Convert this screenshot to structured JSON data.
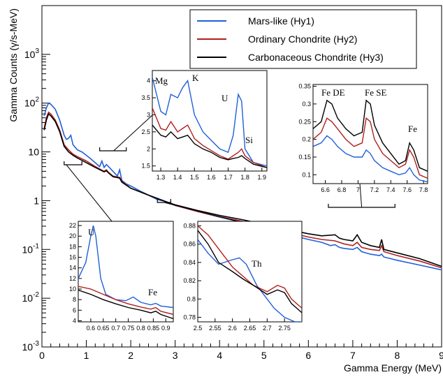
{
  "chart_data": [
    {
      "id": "main",
      "type": "line",
      "xlabel": "Gamma Energy (MeV)",
      "ylabel": "Gamma Counts (γ/s-MeV)",
      "xlim": [
        0,
        9
      ],
      "ylim": [
        0.001,
        10000
      ],
      "yscale": "log",
      "xticks": [
        "0",
        "1",
        "2",
        "3",
        "4",
        "5",
        "6",
        "7",
        "8",
        "9"
      ],
      "yticks": [
        {
          "base": "10",
          "exp": "-3"
        },
        {
          "base": "10",
          "exp": "-2"
        },
        {
          "base": "10",
          "exp": "-1"
        },
        {
          "base": "1",
          "exp": ""
        },
        {
          "base": "10",
          "exp": ""
        },
        {
          "base": "10",
          "exp": "2"
        },
        {
          "base": "10",
          "exp": "3"
        }
      ],
      "legend_position": "top-right",
      "series": [
        {
          "name": "Mars-like (Hy1)",
          "color": "#2060d8",
          "x": [
            0.05,
            0.1,
            0.15,
            0.2,
            0.3,
            0.4,
            0.5,
            0.55,
            0.6,
            0.65,
            0.7,
            0.8,
            0.9,
            1.0,
            1.1,
            1.2,
            1.3,
            1.35,
            1.4,
            1.45,
            1.5,
            1.6,
            1.7,
            1.75,
            1.8,
            1.9,
            2.0,
            2.2,
            2.4,
            2.6,
            2.8,
            3.0,
            3.5,
            4.0,
            4.5,
            5.0,
            5.5,
            6.0,
            6.3,
            6.5,
            6.6,
            6.7,
            6.8,
            7.0,
            7.1,
            7.2,
            7.4,
            7.6,
            7.65,
            7.7,
            8.0,
            8.5,
            9.0
          ],
          "y": [
            55,
            80,
            100,
            95,
            75,
            45,
            22,
            18,
            19,
            22,
            14,
            11,
            10,
            8.5,
            7.2,
            6,
            5,
            6.5,
            4.8,
            5.5,
            5,
            4,
            3.2,
            4.3,
            2.6,
            2.2,
            2,
            1.6,
            1.3,
            1.05,
            0.95,
            0.8,
            0.6,
            0.46,
            0.36,
            0.28,
            0.21,
            0.16,
            0.14,
            0.12,
            0.125,
            0.11,
            0.105,
            0.1,
            0.11,
            0.09,
            0.08,
            0.075,
            0.08,
            0.07,
            0.06,
            0.048,
            0.038
          ]
        },
        {
          "name": "Ordinary Chondrite (Hy2)",
          "color": "#b02020",
          "x": [
            0.05,
            0.1,
            0.15,
            0.2,
            0.3,
            0.4,
            0.5,
            0.6,
            0.7,
            0.8,
            1.0,
            1.2,
            1.4,
            1.45,
            1.5,
            1.6,
            1.75,
            1.8,
            2.0,
            2.4,
            2.8,
            3.0,
            3.5,
            4.0,
            4.5,
            5.0,
            5.5,
            6.0,
            6.3,
            6.6,
            6.7,
            6.8,
            7.0,
            7.1,
            7.2,
            7.4,
            7.6,
            7.65,
            7.7,
            8.0,
            8.5,
            9.0
          ],
          "y": [
            30,
            50,
            65,
            60,
            45,
            28,
            14,
            11,
            9,
            8,
            6.5,
            5,
            4,
            4.3,
            3.8,
            3.2,
            3,
            2.5,
            1.8,
            1.3,
            0.95,
            0.8,
            0.6,
            0.47,
            0.38,
            0.3,
            0.23,
            0.18,
            0.16,
            0.15,
            0.14,
            0.13,
            0.12,
            0.14,
            0.11,
            0.1,
            0.095,
            0.12,
            0.09,
            0.075,
            0.058,
            0.042
          ]
        },
        {
          "name": "Carbonaceous Chondrite (Hy3)",
          "color": "#000000",
          "x": [
            0.05,
            0.1,
            0.15,
            0.2,
            0.3,
            0.4,
            0.5,
            0.6,
            0.7,
            0.8,
            1.0,
            1.2,
            1.4,
            1.45,
            1.5,
            1.6,
            1.75,
            1.8,
            2.0,
            2.4,
            2.8,
            3.0,
            3.5,
            4.0,
            4.5,
            5.0,
            5.5,
            6.0,
            6.3,
            6.6,
            6.7,
            6.8,
            7.0,
            7.1,
            7.2,
            7.4,
            7.6,
            7.65,
            7.7,
            8.0,
            8.5,
            9.0
          ],
          "y": [
            28,
            45,
            60,
            55,
            42,
            26,
            13,
            10,
            8.5,
            7.5,
            6,
            4.8,
            3.9,
            4.1,
            3.7,
            3.1,
            2.9,
            2.4,
            1.8,
            1.3,
            0.95,
            0.82,
            0.63,
            0.5,
            0.41,
            0.33,
            0.26,
            0.21,
            0.19,
            0.2,
            0.17,
            0.16,
            0.15,
            0.2,
            0.14,
            0.12,
            0.11,
            0.16,
            0.1,
            0.085,
            0.065,
            0.045
          ]
        }
      ]
    },
    {
      "id": "inset-mg-k",
      "type": "line",
      "xlim": [
        1.25,
        1.93
      ],
      "ylim": [
        1.35,
        4.3
      ],
      "xticks": [
        "1.3",
        "1.4",
        "1.5",
        "1.6",
        "1.7",
        "1.8",
        "1.9"
      ],
      "yticks": [
        "1.5",
        "2",
        "2.5",
        "3",
        "3.5",
        "4"
      ],
      "annotations": [
        "Mg",
        "K",
        "U",
        "Si"
      ],
      "series": [
        {
          "color": "#2060d8",
          "x": [
            1.25,
            1.3,
            1.33,
            1.36,
            1.4,
            1.43,
            1.46,
            1.5,
            1.55,
            1.6,
            1.65,
            1.7,
            1.73,
            1.76,
            1.78,
            1.8,
            1.85,
            1.93
          ],
          "y": [
            4.1,
            3.1,
            3.0,
            3.6,
            3.5,
            3.8,
            4.0,
            3.0,
            2.5,
            2.25,
            2.0,
            1.9,
            2.4,
            3.6,
            3.4,
            2.0,
            1.6,
            1.5
          ]
        },
        {
          "color": "#b02020",
          "x": [
            1.25,
            1.3,
            1.33,
            1.36,
            1.4,
            1.43,
            1.46,
            1.5,
            1.55,
            1.6,
            1.65,
            1.7,
            1.73,
            1.76,
            1.78,
            1.8,
            1.85,
            1.93
          ],
          "y": [
            3.2,
            2.6,
            2.55,
            2.8,
            2.5,
            2.6,
            2.7,
            2.3,
            2.1,
            1.95,
            1.8,
            1.7,
            1.8,
            1.9,
            2.0,
            1.8,
            1.6,
            1.45
          ]
        },
        {
          "color": "#000000",
          "x": [
            1.25,
            1.3,
            1.33,
            1.36,
            1.4,
            1.43,
            1.46,
            1.5,
            1.55,
            1.6,
            1.65,
            1.7,
            1.73,
            1.76,
            1.78,
            1.8,
            1.85,
            1.93
          ],
          "y": [
            2.7,
            2.4,
            2.35,
            2.5,
            2.3,
            2.35,
            2.4,
            2.15,
            2.0,
            1.9,
            1.75,
            1.68,
            1.72,
            1.75,
            1.8,
            1.72,
            1.55,
            1.45
          ]
        }
      ]
    },
    {
      "id": "inset-fe",
      "type": "line",
      "xlim": [
        6.45,
        7.85
      ],
      "ylim": [
        0.075,
        0.355
      ],
      "xticks": [
        "6.6",
        "6.8",
        "7",
        "7.2",
        "7.4",
        "7.6",
        "7.8"
      ],
      "yticks": [
        "0.1",
        "0.15",
        "0.2",
        "0.25",
        "0.3",
        "0.35"
      ],
      "annotations": [
        "Fe DE",
        "Fe SE",
        "Fe"
      ],
      "series": [
        {
          "color": "#000000",
          "x": [
            6.45,
            6.55,
            6.62,
            6.68,
            6.75,
            6.85,
            6.95,
            7.05,
            7.1,
            7.15,
            7.2,
            7.3,
            7.4,
            7.5,
            7.58,
            7.63,
            7.68,
            7.75,
            7.85
          ],
          "y": [
            0.23,
            0.25,
            0.31,
            0.3,
            0.26,
            0.23,
            0.21,
            0.22,
            0.31,
            0.3,
            0.24,
            0.19,
            0.16,
            0.13,
            0.14,
            0.19,
            0.17,
            0.12,
            0.11
          ]
        },
        {
          "color": "#b02020",
          "x": [
            6.45,
            6.55,
            6.62,
            6.68,
            6.75,
            6.85,
            6.95,
            7.05,
            7.1,
            7.15,
            7.2,
            7.3,
            7.4,
            7.5,
            7.58,
            7.63,
            7.68,
            7.75,
            7.85
          ],
          "y": [
            0.2,
            0.22,
            0.26,
            0.25,
            0.23,
            0.2,
            0.18,
            0.19,
            0.26,
            0.25,
            0.2,
            0.16,
            0.14,
            0.12,
            0.13,
            0.17,
            0.15,
            0.1,
            0.09
          ]
        },
        {
          "color": "#2060d8",
          "x": [
            6.45,
            6.55,
            6.62,
            6.68,
            6.75,
            6.85,
            6.95,
            7.05,
            7.1,
            7.15,
            7.2,
            7.3,
            7.4,
            7.5,
            7.58,
            7.63,
            7.68,
            7.75,
            7.85
          ],
          "y": [
            0.18,
            0.19,
            0.21,
            0.2,
            0.18,
            0.16,
            0.15,
            0.15,
            0.17,
            0.16,
            0.14,
            0.12,
            0.11,
            0.1,
            0.105,
            0.12,
            0.1,
            0.085,
            0.08
          ]
        }
      ]
    },
    {
      "id": "inset-u",
      "type": "line",
      "xlim": [
        0.55,
        0.93
      ],
      "ylim": [
        3.8,
        22.8
      ],
      "xticks": [
        "0.6",
        "0.65",
        "0.7",
        "0.75",
        "0.8",
        "0.85",
        "0.9"
      ],
      "yticks": [
        "4",
        "6",
        "8",
        "10",
        "12",
        "14",
        "16",
        "18",
        "20",
        "22"
      ],
      "annotations": [
        "U",
        "Fe"
      ],
      "series": [
        {
          "color": "#2060d8",
          "x": [
            0.55,
            0.58,
            0.6,
            0.61,
            0.62,
            0.64,
            0.66,
            0.7,
            0.74,
            0.77,
            0.8,
            0.84,
            0.86,
            0.88,
            0.93
          ],
          "y": [
            12,
            15,
            20,
            22,
            20,
            12,
            9,
            8,
            7.8,
            8.5,
            7.5,
            7,
            7.3,
            6.8,
            6.5
          ]
        },
        {
          "color": "#b02020",
          "x": [
            0.55,
            0.6,
            0.65,
            0.7,
            0.75,
            0.8,
            0.84,
            0.86,
            0.88,
            0.93
          ],
          "y": [
            10.5,
            10,
            9,
            8,
            7.2,
            6.6,
            6.2,
            6.5,
            5.8,
            5.2
          ]
        },
        {
          "color": "#000000",
          "x": [
            0.55,
            0.6,
            0.65,
            0.7,
            0.75,
            0.8,
            0.84,
            0.86,
            0.88,
            0.93
          ],
          "y": [
            9.8,
            9,
            8,
            7.2,
            6.5,
            6,
            5.5,
            5.8,
            5.2,
            4.4
          ]
        }
      ]
    },
    {
      "id": "inset-th",
      "type": "line",
      "xlim": [
        2.5,
        2.8
      ],
      "ylim": [
        0.775,
        0.885
      ],
      "xticks": [
        "2.5",
        "2.55",
        "2.6",
        "2.65",
        "2.7",
        "2.75"
      ],
      "yticks": [
        "0.78",
        "0.8",
        "0.82",
        "0.84",
        "0.86",
        "0.88"
      ],
      "annotations": [
        "Th"
      ],
      "series": [
        {
          "color": "#2060d8",
          "x": [
            2.5,
            2.53,
            2.56,
            2.6,
            2.62,
            2.64,
            2.67,
            2.7,
            2.72,
            2.75,
            2.78,
            2.8
          ],
          "y": [
            0.865,
            0.85,
            0.838,
            0.843,
            0.845,
            0.838,
            0.815,
            0.8,
            0.79,
            0.78,
            0.775,
            0.775
          ]
        },
        {
          "color": "#b02020",
          "x": [
            2.5,
            2.53,
            2.56,
            2.6,
            2.63,
            2.66,
            2.7,
            2.73,
            2.75,
            2.77,
            2.8
          ],
          "y": [
            0.88,
            0.87,
            0.855,
            0.835,
            0.825,
            0.815,
            0.808,
            0.815,
            0.812,
            0.8,
            0.79
          ]
        },
        {
          "color": "#000000",
          "x": [
            2.5,
            2.53,
            2.56,
            2.6,
            2.63,
            2.66,
            2.7,
            2.73,
            2.75,
            2.77,
            2.8
          ],
          "y": [
            0.875,
            0.86,
            0.84,
            0.83,
            0.822,
            0.815,
            0.805,
            0.81,
            0.807,
            0.795,
            0.785
          ]
        }
      ]
    }
  ]
}
